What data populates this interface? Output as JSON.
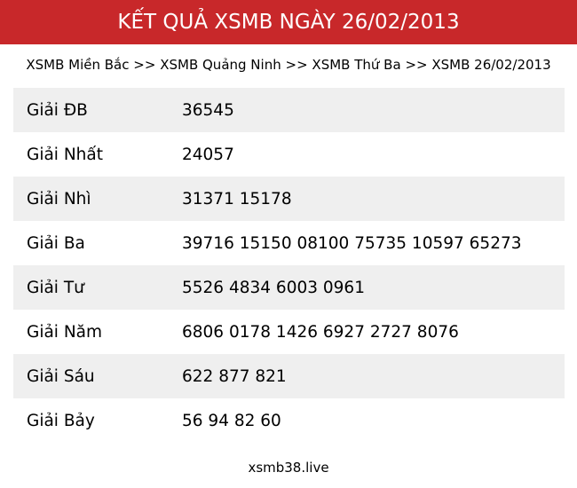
{
  "header": {
    "title": "KẾT QUẢ XSMB NGÀY 26/02/2013"
  },
  "breadcrumb": {
    "items": [
      "XSMB Miền Bắc",
      "XSMB Quảng Ninh",
      "XSMB Thứ Ba",
      "XSMB 26/02/2013"
    ],
    "separator": ">>"
  },
  "results": [
    {
      "label": "Giải ĐB",
      "value": "36545"
    },
    {
      "label": "Giải Nhất",
      "value": "24057"
    },
    {
      "label": "Giải Nhì",
      "value": "31371 15178"
    },
    {
      "label": "Giải Ba",
      "value": "39716 15150 08100 75735 10597 65273"
    },
    {
      "label": "Giải Tư",
      "value": "5526 4834 6003 0961"
    },
    {
      "label": "Giải Năm",
      "value": "6806 0178 1426 6927 2727 8076"
    },
    {
      "label": "Giải Sáu",
      "value": "622 877 821"
    },
    {
      "label": "Giải Bảy",
      "value": "56 94 82 60"
    }
  ],
  "footer": {
    "text": "xsmb38.live"
  },
  "colors": {
    "header_bg": "#c8282a",
    "stripe": "#efefef"
  }
}
